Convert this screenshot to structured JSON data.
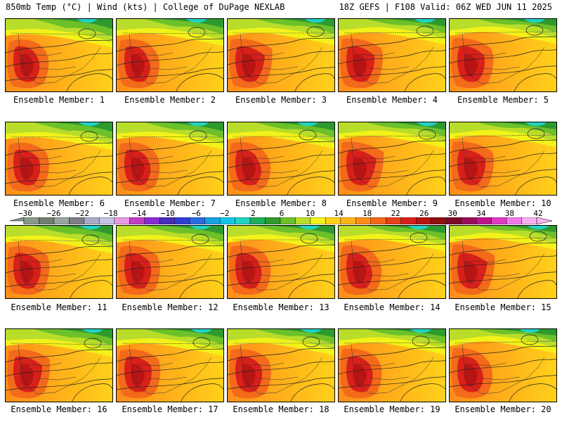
{
  "header": {
    "title_left": "850mb Temp (°C) | Wind (kts) | College of DuPage NEXLAB",
    "title_right": "18Z GEFS | F108 Valid: 06Z WED JUN 11 2025"
  },
  "panels": [
    {
      "label": "Ensemble Member: 1"
    },
    {
      "label": "Ensemble Member: 2"
    },
    {
      "label": "Ensemble Member: 3"
    },
    {
      "label": "Ensemble Member: 4"
    },
    {
      "label": "Ensemble Member: 5"
    },
    {
      "label": "Ensemble Member: 6"
    },
    {
      "label": "Ensemble Member: 7"
    },
    {
      "label": "Ensemble Member: 8"
    },
    {
      "label": "Ensemble Member: 9"
    },
    {
      "label": "Ensemble Member: 10"
    },
    {
      "label": "Ensemble Member: 11"
    },
    {
      "label": "Ensemble Member: 12"
    },
    {
      "label": "Ensemble Member: 13"
    },
    {
      "label": "Ensemble Member: 14"
    },
    {
      "label": "Ensemble Member: 15"
    },
    {
      "label": "Ensemble Member: 16"
    },
    {
      "label": "Ensemble Member: 17"
    },
    {
      "label": "Ensemble Member: 18"
    },
    {
      "label": "Ensemble Member: 19"
    },
    {
      "label": "Ensemble Member: 20"
    }
  ],
  "colorbar": {
    "tick_labels": [
      "−30",
      "−26",
      "−22",
      "−18",
      "−14",
      "−10",
      "−6",
      "−2",
      "2",
      "6",
      "10",
      "14",
      "18",
      "22",
      "26",
      "30",
      "34",
      "38",
      "42"
    ],
    "colors": [
      "#8a9a8a",
      "#6f7f6f",
      "#9aa5a0",
      "#7d7d85",
      "#a9a9c8",
      "#c4c4e6",
      "#e59ae5",
      "#c23ec2",
      "#8a2bd6",
      "#4b2bbd",
      "#2e3fd4",
      "#2a6ce0",
      "#17a2e0",
      "#13c5e8",
      "#22d3c2",
      "#1fae5a",
      "#2e9a2e",
      "#6cc02a",
      "#b8dd2a",
      "#f2f21a",
      "#ffd21a",
      "#ffb31a",
      "#ff8c1a",
      "#f26a1a",
      "#e8401a",
      "#d8201a",
      "#b81414",
      "#901010",
      "#7a0c2a",
      "#9a0f5a",
      "#c0148c",
      "#e03cc8",
      "#f27ae8",
      "#f8b0f0"
    ]
  }
}
